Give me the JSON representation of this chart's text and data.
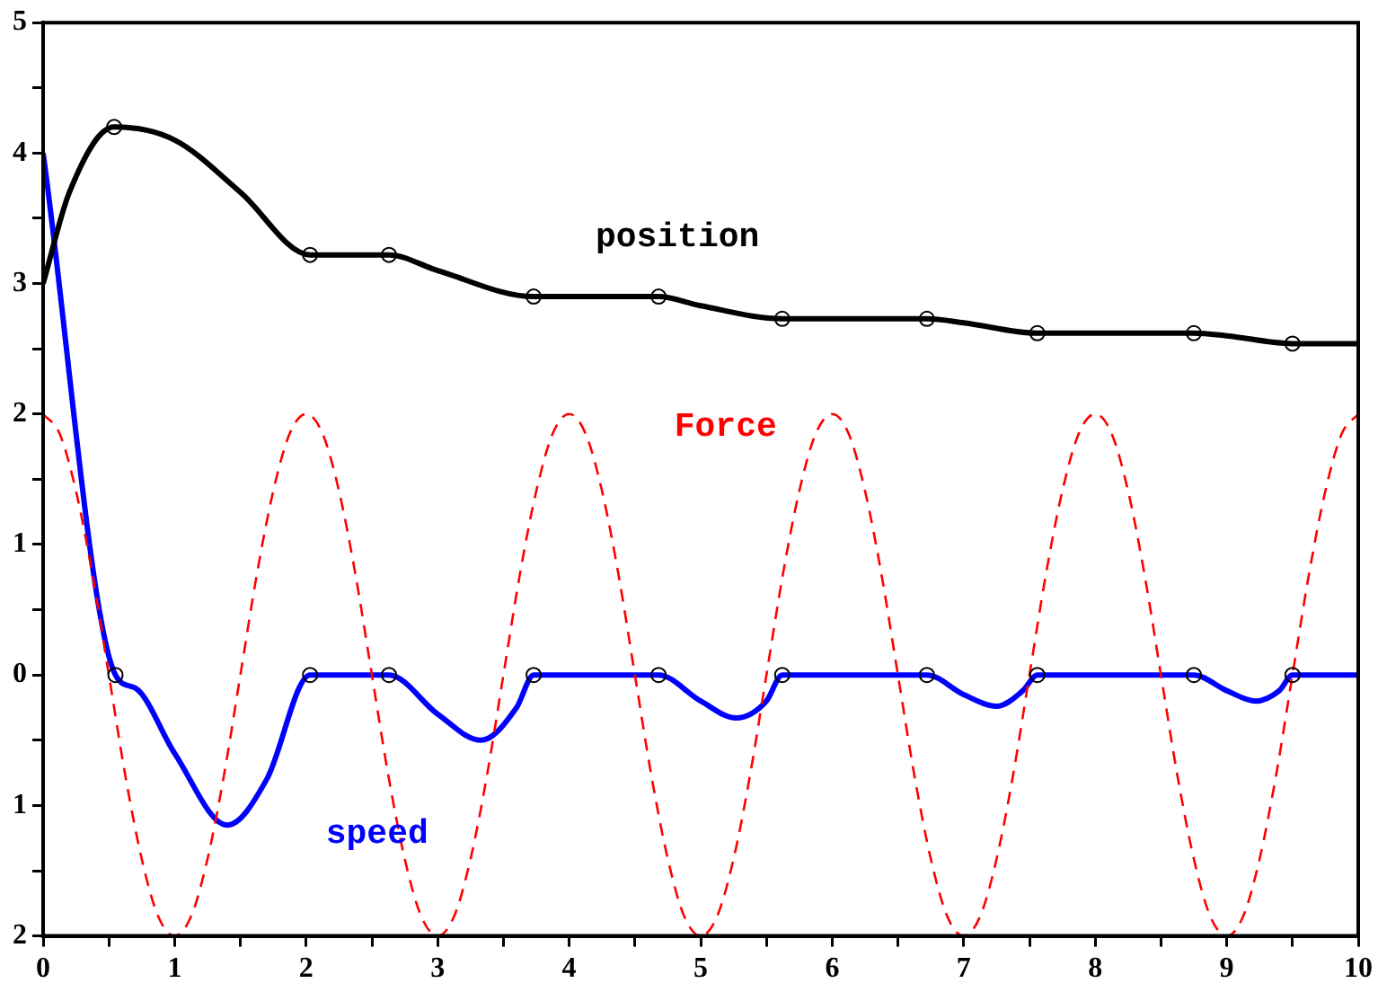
{
  "chart_data": {
    "type": "line",
    "xlim": [
      0,
      10
    ],
    "ylim": [
      -2,
      5
    ],
    "xticks": [
      0,
      {
        "value": 0.5,
        "label": null
      },
      1,
      {
        "value": 1.5,
        "label": null
      },
      2,
      {
        "value": 2.5,
        "label": null
      },
      3,
      {
        "value": 3.5,
        "label": null
      },
      4,
      {
        "value": 4.5,
        "label": null
      },
      5,
      {
        "value": 5.5,
        "label": null
      },
      6,
      {
        "value": 6.5,
        "label": null
      },
      7,
      {
        "value": 7.5,
        "label": null
      },
      8,
      {
        "value": 8.5,
        "label": null
      },
      9,
      {
        "value": 9.5,
        "label": null
      },
      10
    ],
    "yticks": [
      {
        "value": -2,
        "label": "2"
      },
      {
        "value": -1.5,
        "label": null
      },
      {
        "value": -1,
        "label": "1"
      },
      {
        "value": -0.5,
        "label": null
      },
      0,
      {
        "value": 0.5,
        "label": null
      },
      1,
      {
        "value": 1.5,
        "label": null
      },
      2,
      {
        "value": 2.5,
        "label": null
      },
      3,
      {
        "value": 3.5,
        "label": null
      },
      4,
      {
        "value": 4.5,
        "label": null
      },
      5
    ],
    "grid": false,
    "legend": false,
    "series": [
      {
        "name": "position",
        "color": "#000000",
        "marker": "none",
        "x": [
          0,
          0.2,
          0.54,
          1.0,
          1.5,
          2.03,
          2.63,
          3.0,
          3.73,
          4.68,
          5.0,
          5.62,
          6.72,
          7.0,
          7.56,
          8.75,
          9.0,
          9.5,
          10
        ],
        "values": [
          3.0,
          3.7,
          4.2,
          4.1,
          3.7,
          3.22,
          3.22,
          3.1,
          2.9,
          2.9,
          2.83,
          2.73,
          2.73,
          2.7,
          2.62,
          2.62,
          2.6,
          2.54,
          2.54
        ]
      },
      {
        "type": "scatter",
        "color": "#000000",
        "marker": "circle",
        "x": [
          0.54,
          2.03,
          2.63,
          3.73,
          4.68,
          5.62,
          6.72,
          7.56,
          8.75,
          9.5
        ],
        "values": [
          4.2,
          3.22,
          3.22,
          2.9,
          2.9,
          2.73,
          2.73,
          2.62,
          2.62,
          2.54
        ]
      },
      {
        "name": "Force",
        "color": "#ff0000",
        "marker": "none",
        "line_style": "dashed",
        "x": [
          0,
          0.125,
          0.25,
          0.375,
          0.5,
          0.625,
          0.75,
          0.875,
          1,
          1.125,
          1.25,
          1.375,
          1.5,
          1.625,
          1.75,
          1.875,
          2,
          2.125,
          2.25,
          2.375,
          2.5,
          2.625,
          2.75,
          2.875,
          3,
          3.125,
          3.25,
          3.375,
          3.5,
          3.625,
          3.75,
          3.875,
          4,
          4.125,
          4.25,
          4.375,
          4.5,
          4.625,
          4.75,
          4.875,
          5,
          5.125,
          5.25,
          5.375,
          5.5,
          5.625,
          5.75,
          5.875,
          6,
          6.125,
          6.25,
          6.375,
          6.5,
          6.625,
          6.75,
          6.875,
          7,
          7.125,
          7.25,
          7.375,
          7.5,
          7.625,
          7.75,
          7.875,
          8,
          8.125,
          8.25,
          8.375,
          8.5,
          8.625,
          8.75,
          8.875,
          9,
          9.125,
          9.25,
          9.375,
          9.5,
          9.625,
          9.75,
          9.875,
          10
        ],
        "values": [
          2,
          1.85,
          1.41,
          0.77,
          0,
          -0.77,
          -1.41,
          -1.85,
          -2,
          -1.85,
          -1.41,
          -0.77,
          0,
          0.77,
          1.41,
          1.85,
          2,
          1.85,
          1.41,
          0.77,
          0,
          -0.77,
          -1.41,
          -1.85,
          -2,
          -1.85,
          -1.41,
          -0.77,
          0,
          0.77,
          1.41,
          1.85,
          2,
          1.85,
          1.41,
          0.77,
          0,
          -0.77,
          -1.41,
          -1.85,
          -2,
          -1.85,
          -1.41,
          -0.77,
          0,
          0.77,
          1.41,
          1.85,
          2,
          1.85,
          1.41,
          0.77,
          0,
          -0.77,
          -1.41,
          -1.85,
          -2,
          -1.85,
          -1.41,
          -0.77,
          0,
          0.77,
          1.41,
          1.85,
          2,
          1.85,
          1.41,
          0.77,
          0,
          -0.77,
          -1.41,
          -1.85,
          -2,
          -1.85,
          -1.41,
          -0.77,
          0,
          0.77,
          1.41,
          1.85,
          2
        ]
      },
      {
        "name": "speed",
        "color": "#0000ff",
        "marker": "none",
        "x": [
          0,
          0.55,
          0.7,
          1.0,
          1.4,
          1.7,
          2.03,
          2.63,
          3.0,
          3.33,
          3.6,
          3.73,
          4.68,
          5.0,
          5.27,
          5.5,
          5.62,
          6.72,
          7.0,
          7.25,
          7.45,
          7.56,
          8.75,
          9.0,
          9.22,
          9.4,
          9.5,
          10
        ],
        "values": [
          4,
          0,
          -0.1,
          -0.6,
          -1.15,
          -0.8,
          0,
          0,
          -0.3,
          -0.5,
          -0.25,
          0,
          0,
          -0.2,
          -0.33,
          -0.2,
          0,
          0,
          -0.15,
          -0.24,
          -0.12,
          0,
          0,
          -0.12,
          -0.2,
          -0.12,
          0,
          0
        ]
      },
      {
        "type": "scatter",
        "color": "#000000",
        "marker": "circle",
        "x": [
          0.55,
          2.03,
          2.63,
          3.73,
          4.68,
          5.62,
          6.72,
          7.56,
          8.75,
          9.5
        ],
        "values": [
          0,
          0,
          0,
          0,
          0,
          0,
          0,
          0,
          0,
          0
        ]
      }
    ]
  }
}
